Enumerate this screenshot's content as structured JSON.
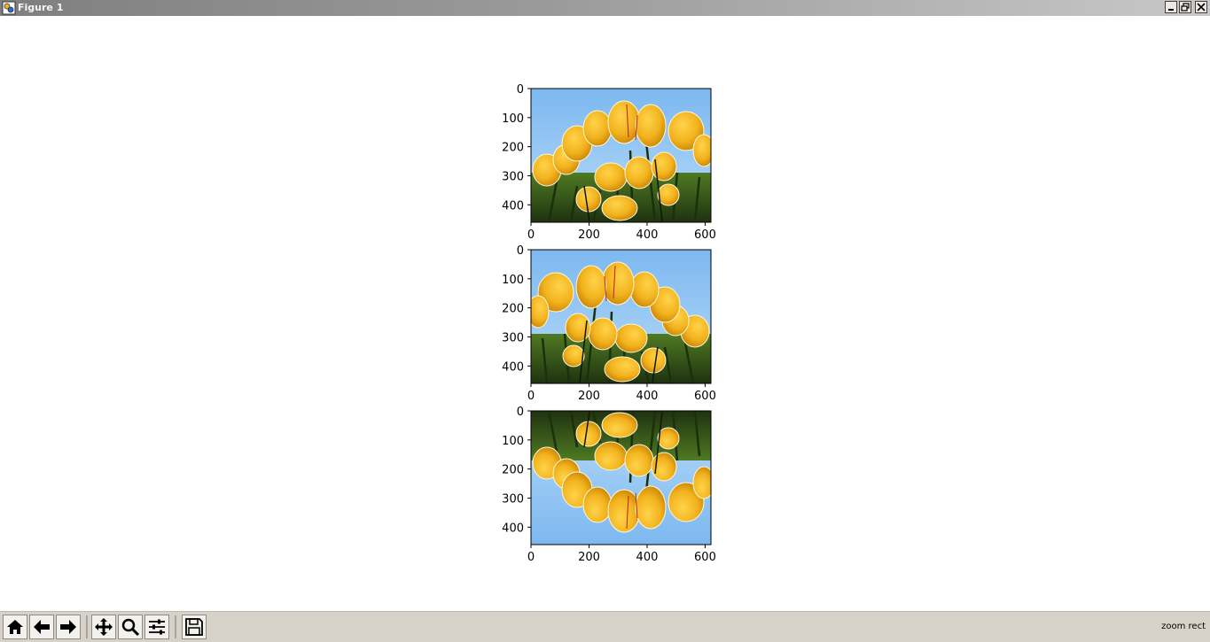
{
  "window": {
    "title": "Figure 1",
    "app_icon": "figure-window-icon",
    "controls": [
      "minimize-icon",
      "restore-icon",
      "close-icon"
    ]
  },
  "figure": {
    "subplots": [
      {
        "content": "tulips-image-original",
        "x_ticks": [
          "0",
          "200",
          "400",
          "600"
        ],
        "y_ticks": [
          "0",
          "100",
          "200",
          "300",
          "400"
        ]
      },
      {
        "content": "tulips-image-mirrored-horizontal",
        "x_ticks": [
          "0",
          "200",
          "400",
          "600"
        ],
        "y_ticks": [
          "0",
          "100",
          "200",
          "300",
          "400"
        ]
      },
      {
        "content": "tulips-image-flipped-vertical",
        "x_ticks": [
          "0",
          "200",
          "400",
          "600"
        ],
        "y_ticks": [
          "0",
          "100",
          "200",
          "300",
          "400"
        ]
      }
    ],
    "image_extent": {
      "x": [
        0,
        620
      ],
      "y": [
        460,
        0
      ]
    }
  },
  "toolbar": {
    "buttons": [
      "home-icon",
      "back-arrow-icon",
      "forward-arrow-icon",
      "pan-move-icon",
      "zoom-magnifier-icon",
      "subplots-config-icon",
      "save-floppy-icon"
    ],
    "status_message": "zoom rect"
  },
  "colors": {
    "sky": "#8ec4f2",
    "tulip": "#f2b31e",
    "tulip_shadow": "#cf8a08",
    "stem": "#2d4a18",
    "toolbar_bg": "#d6d2ca"
  }
}
